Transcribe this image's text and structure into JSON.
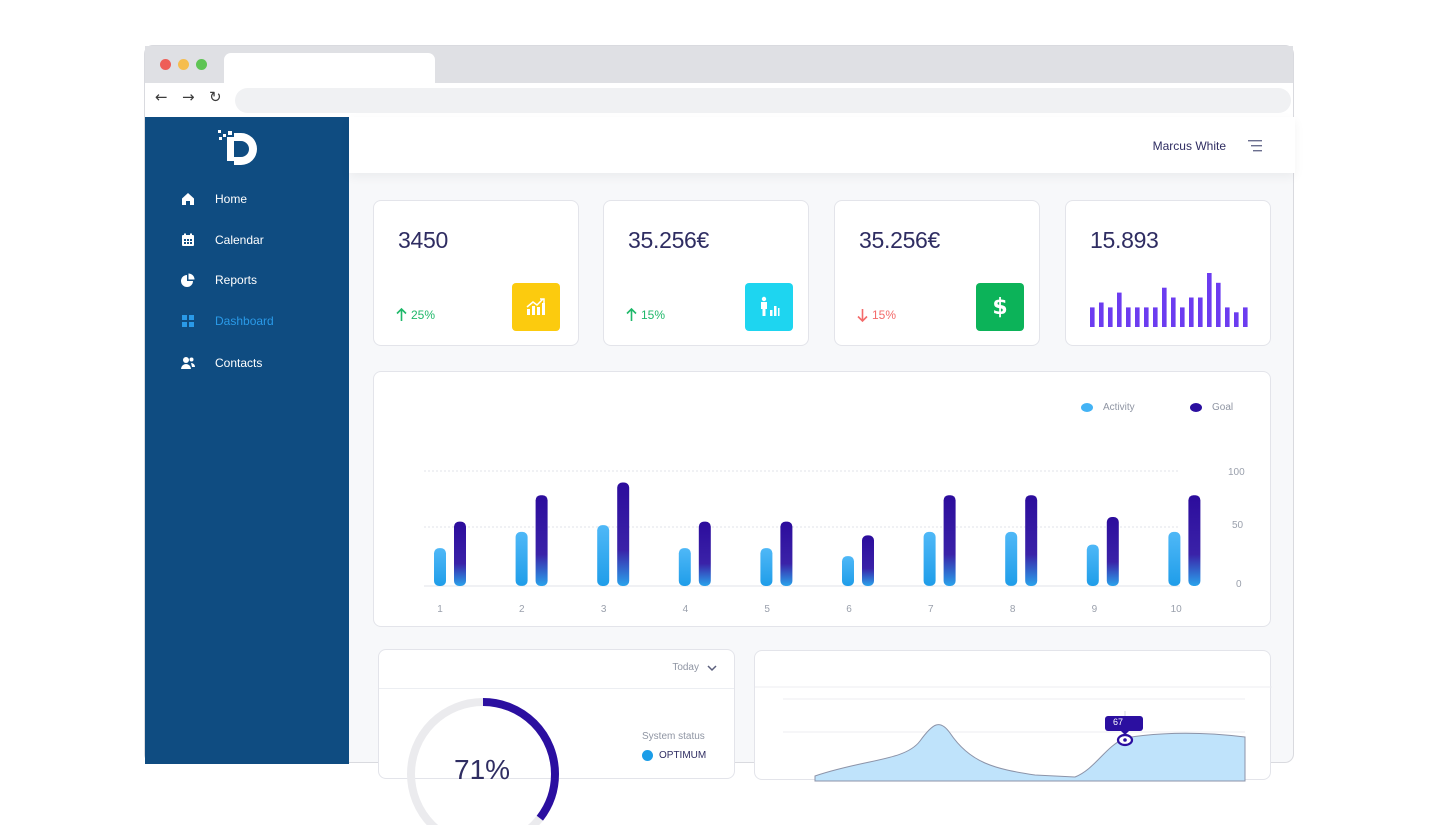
{
  "user": {
    "name": "Marcus White"
  },
  "sidebar": {
    "items": [
      {
        "label": "Home",
        "icon": "home-icon",
        "active": false
      },
      {
        "label": "Calendar",
        "icon": "calendar-icon",
        "active": false
      },
      {
        "label": "Reports",
        "icon": "pie-chart-icon",
        "active": false
      },
      {
        "label": "Dashboard",
        "icon": "grid-icon",
        "active": true
      },
      {
        "label": "Contacts",
        "icon": "contacts-icon",
        "active": false
      }
    ]
  },
  "stats": [
    {
      "value": "3450",
      "change": "25%",
      "trend": "up",
      "trend_color": "#1fb86a",
      "icon": "growth-chart-icon",
      "icon_bg": "#fccb0e"
    },
    {
      "value": "35.256€",
      "change": "15%",
      "trend": "up",
      "trend_color": "#1fb86a",
      "icon": "person-chart-icon",
      "icon_bg": "#1ed5f0"
    },
    {
      "value": "35.256€",
      "change": "15%",
      "trend": "down",
      "trend_color": "#f36a6a",
      "icon": "dollar-icon",
      "icon_bg": "#0cb359"
    },
    {
      "value": "15.893",
      "sparkline_color": "#6c3cf0",
      "sparkline_values": [
        4,
        5,
        4,
        7,
        4,
        4,
        4,
        4,
        8,
        6,
        4,
        6,
        6,
        11,
        9,
        4,
        3,
        4
      ]
    }
  ],
  "activity_chart": {
    "legend": [
      {
        "name": "Activity",
        "color": "#43b3f5"
      },
      {
        "name": "Goal",
        "color": "#2b0fa0"
      }
    ],
    "y_ticks": [
      "100",
      "50",
      "0"
    ],
    "chart_data": {
      "type": "bar",
      "categories": [
        "1",
        "2",
        "3",
        "4",
        "5",
        "6",
        "7",
        "8",
        "9",
        "10"
      ],
      "series": [
        {
          "name": "Activity",
          "values": [
            33,
            47,
            53,
            33,
            33,
            26,
            47,
            47,
            36,
            47
          ]
        },
        {
          "name": "Goal",
          "values": [
            56,
            79,
            90,
            56,
            56,
            44,
            79,
            79,
            60,
            79
          ]
        }
      ],
      "ylim": [
        0,
        100
      ],
      "grid": true,
      "legend_position": "top-right"
    }
  },
  "status": {
    "filter": "Today",
    "system_status_title": "System status",
    "status_label": "OPTIMUM",
    "gauge_text": "71%",
    "gauge_value": 0.71
  },
  "area_chart": {
    "tooltip": "67"
  }
}
